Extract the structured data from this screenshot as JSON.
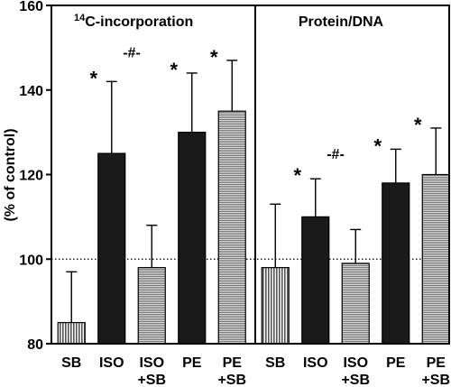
{
  "chart_data": [
    {
      "type": "bar",
      "title": "14C-incorporation",
      "title_superscript": "14",
      "title_main": "C-incorporation",
      "ylabel": "(% of control)",
      "ylim": [
        80,
        160
      ],
      "yticks": [
        80,
        100,
        120,
        140,
        160
      ],
      "reference_line": 100,
      "categories": [
        "SB",
        "ISO",
        "ISO +SB",
        "PE",
        "PE +SB"
      ],
      "category_lines": [
        [
          "SB"
        ],
        [
          "ISO"
        ],
        [
          "ISO",
          "+SB"
        ],
        [
          "PE"
        ],
        [
          "PE",
          "+SB"
        ]
      ],
      "values": [
        85,
        125,
        98,
        130,
        135
      ],
      "errors": [
        12,
        17,
        10,
        14,
        12
      ],
      "fills": [
        "striped",
        "black",
        "gray",
        "black",
        "gray"
      ],
      "markers": [
        "",
        "*",
        "",
        "*",
        "*"
      ],
      "annotation": {
        "text": "-#-",
        "value": 149
      }
    },
    {
      "type": "bar",
      "title": "Protein/DNA",
      "categories": [
        "SB",
        "ISO",
        "ISO +SB",
        "PE",
        "PE +SB"
      ],
      "category_lines": [
        [
          "SB"
        ],
        [
          "ISO"
        ],
        [
          "ISO",
          "+SB"
        ],
        [
          "PE"
        ],
        [
          "PE",
          "+SB"
        ]
      ],
      "values": [
        98,
        110,
        99,
        118,
        120
      ],
      "errors": [
        15,
        9,
        8,
        8,
        11
      ],
      "fills": [
        "striped",
        "black",
        "gray",
        "black",
        "gray"
      ],
      "markers": [
        "",
        "*",
        "",
        "*",
        "*"
      ],
      "annotation": {
        "text": "-#-",
        "value": 125
      }
    }
  ],
  "colors": {
    "black_bar": "#1a1a1a",
    "gray_bar": "#a8a8a8",
    "striped_bar": "#9a9a9a",
    "axis": "#000000"
  },
  "grid": false
}
